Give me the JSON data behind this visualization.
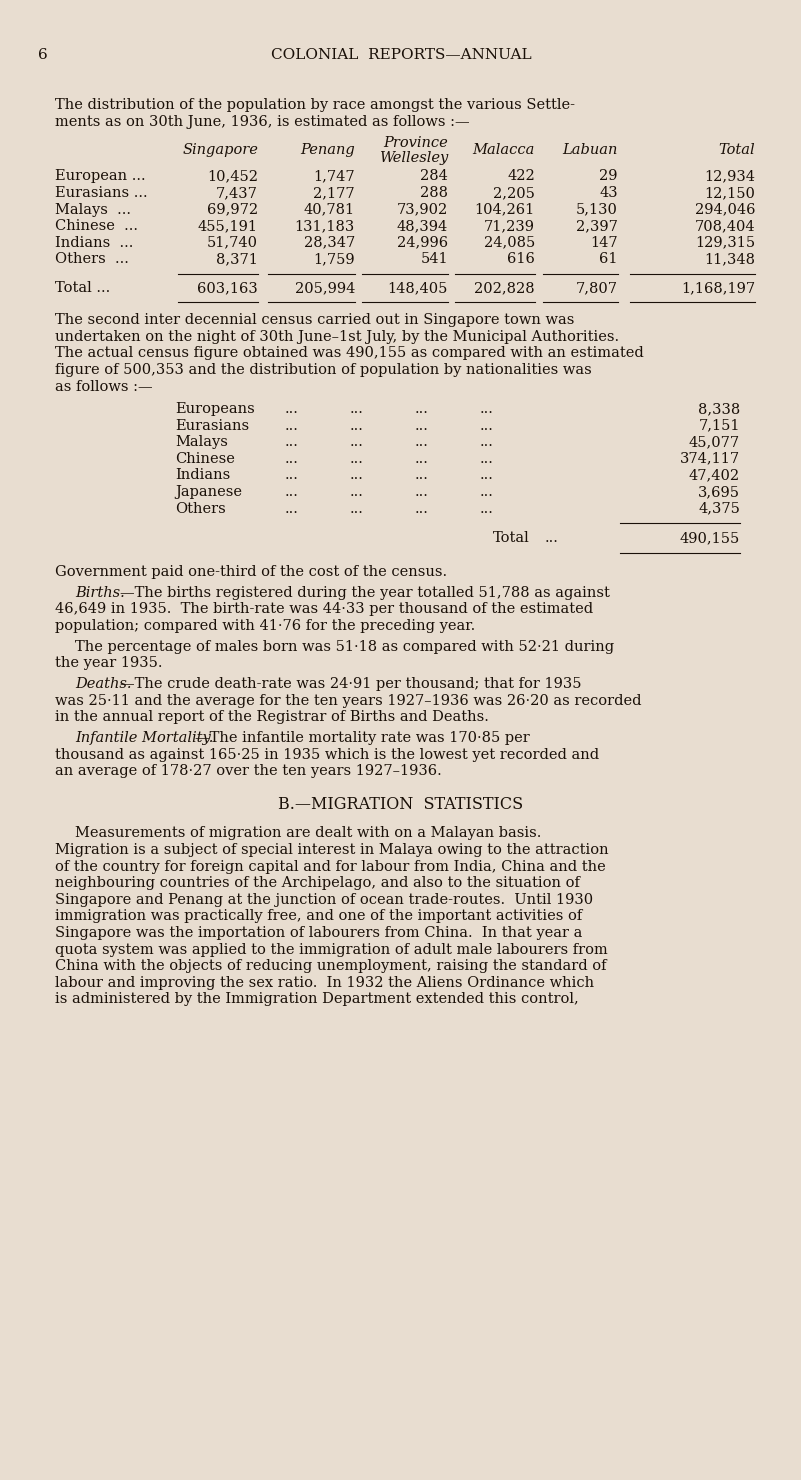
{
  "bg_color": "#e8ddd0",
  "text_color": "#1a1008",
  "page_number": "6",
  "header": "COLONIAL  REPORTS—ANNUAL",
  "table1_rows": [
    [
      "European ...",
      "10,452",
      "1,747",
      "284",
      "422",
      "29",
      "12,934"
    ],
    [
      "Eurasians ...",
      "7,437",
      "2,177",
      "288",
      "2,205",
      "43",
      "12,150"
    ],
    [
      "Malays  ...",
      "69,972",
      "40,781",
      "73,902",
      "104,261",
      "5,130",
      "294,046"
    ],
    [
      "Chinese  ...",
      "455,191",
      "131,183",
      "48,394",
      "71,239",
      "2,397",
      "708,404"
    ],
    [
      "Indians  ...",
      "51,740",
      "28,347",
      "24,996",
      "24,085",
      "147",
      "129,315"
    ],
    [
      "Others  ...",
      "8,371",
      "1,759",
      "541",
      "616",
      "61",
      "11,348"
    ]
  ],
  "table1_total": [
    "Total ...",
    "603,163",
    "205,994",
    "148,405",
    "202,828",
    "7,807",
    "1,168,197"
  ],
  "table2_rows": [
    [
      "Europeans",
      "8,338"
    ],
    [
      "Eurasians",
      "7,151"
    ],
    [
      "Malays",
      "45,077"
    ],
    [
      "Chinese",
      "374,117"
    ],
    [
      "Indians",
      "47,402"
    ],
    [
      "Japanese",
      "3,695"
    ],
    [
      "Others",
      "4,375"
    ]
  ],
  "table2_total": "490,155",
  "section_b": "B.—MIGRATION  STATISTICS"
}
